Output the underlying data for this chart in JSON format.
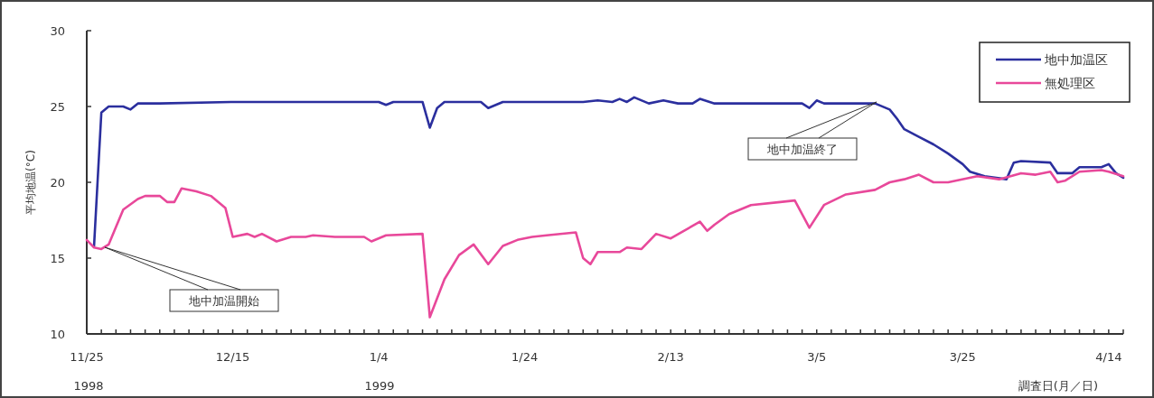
{
  "chart_data": {
    "type": "line",
    "xlabel": "調査日(月／日)",
    "ylabel": "平均地温(°C)",
    "xlim": [
      "1998-11-25",
      "1999-04-16"
    ],
    "ylim": [
      10,
      30
    ],
    "yticks": [
      10,
      15,
      20,
      25,
      30
    ],
    "xticks": [
      {
        "value": "1998-11-25",
        "label": "11/25"
      },
      {
        "value": "1998-11-27",
        "label": null
      },
      {
        "value": "1998-11-29",
        "label": null
      },
      {
        "value": "1998-12-01",
        "label": null
      },
      {
        "value": "1998-12-03",
        "label": null
      },
      {
        "value": "1998-12-05",
        "label": null
      },
      {
        "value": "1998-12-07",
        "label": null
      },
      {
        "value": "1998-12-09",
        "label": null
      },
      {
        "value": "1998-12-11",
        "label": null
      },
      {
        "value": "1998-12-13",
        "label": null
      },
      {
        "value": "1998-12-15",
        "label": "12/15"
      },
      {
        "value": "1998-12-17",
        "label": null
      },
      {
        "value": "1998-12-19",
        "label": null
      },
      {
        "value": "1998-12-21",
        "label": null
      },
      {
        "value": "1998-12-23",
        "label": null
      },
      {
        "value": "1998-12-25",
        "label": null
      },
      {
        "value": "1998-12-27",
        "label": null
      },
      {
        "value": "1998-12-29",
        "label": null
      },
      {
        "value": "1998-12-31",
        "label": null
      },
      {
        "value": "1999-01-02",
        "label": null
      },
      {
        "value": "1999-01-04",
        "label": "1/4"
      },
      {
        "value": "1999-01-06",
        "label": null
      },
      {
        "value": "1999-01-08",
        "label": null
      },
      {
        "value": "1999-01-10",
        "label": null
      },
      {
        "value": "1999-01-12",
        "label": null
      },
      {
        "value": "1999-01-14",
        "label": null
      },
      {
        "value": "1999-01-16",
        "label": null
      },
      {
        "value": "1999-01-18",
        "label": null
      },
      {
        "value": "1999-01-20",
        "label": null
      },
      {
        "value": "1999-01-22",
        "label": null
      },
      {
        "value": "1999-01-24",
        "label": "1/24"
      },
      {
        "value": "1999-01-26",
        "label": null
      },
      {
        "value": "1999-01-28",
        "label": null
      },
      {
        "value": "1999-01-30",
        "label": null
      },
      {
        "value": "1999-02-01",
        "label": null
      },
      {
        "value": "1999-02-03",
        "label": null
      },
      {
        "value": "1999-02-05",
        "label": null
      },
      {
        "value": "1999-02-07",
        "label": null
      },
      {
        "value": "1999-02-09",
        "label": null
      },
      {
        "value": "1999-02-11",
        "label": null
      },
      {
        "value": "1999-02-13",
        "label": "2/13"
      },
      {
        "value": "1999-02-15",
        "label": null
      },
      {
        "value": "1999-02-17",
        "label": null
      },
      {
        "value": "1999-02-19",
        "label": null
      },
      {
        "value": "1999-02-21",
        "label": null
      },
      {
        "value": "1999-02-23",
        "label": null
      },
      {
        "value": "1999-02-25",
        "label": null
      },
      {
        "value": "1999-02-27",
        "label": null
      },
      {
        "value": "1999-03-01",
        "label": null
      },
      {
        "value": "1999-03-03",
        "label": null
      },
      {
        "value": "1999-03-05",
        "label": "3/5"
      },
      {
        "value": "1999-03-07",
        "label": null
      },
      {
        "value": "1999-03-09",
        "label": null
      },
      {
        "value": "1999-03-11",
        "label": null
      },
      {
        "value": "1999-03-13",
        "label": null
      },
      {
        "value": "1999-03-15",
        "label": null
      },
      {
        "value": "1999-03-17",
        "label": null
      },
      {
        "value": "1999-03-19",
        "label": null
      },
      {
        "value": "1999-03-21",
        "label": null
      },
      {
        "value": "1999-03-23",
        "label": null
      },
      {
        "value": "1999-03-25",
        "label": "3/25"
      },
      {
        "value": "1999-03-27",
        "label": null
      },
      {
        "value": "1999-03-29",
        "label": null
      },
      {
        "value": "1999-03-31",
        "label": null
      },
      {
        "value": "1999-04-02",
        "label": null
      },
      {
        "value": "1999-04-04",
        "label": null
      },
      {
        "value": "1999-04-06",
        "label": null
      },
      {
        "value": "1999-04-08",
        "label": null
      },
      {
        "value": "1999-04-10",
        "label": null
      },
      {
        "value": "1999-04-12",
        "label": null
      },
      {
        "value": "1999-04-14",
        "label": "4/14"
      },
      {
        "value": "1999-04-16",
        "label": null
      }
    ],
    "legend": "top right",
    "series": [
      {
        "name": "地中加温区",
        "color": "#2b2f9e",
        "x": [
          "1998-11-26",
          "1998-11-27",
          "1998-11-28",
          "1998-11-30",
          "1998-12-01",
          "1998-12-02",
          "1998-12-05",
          "1998-12-15",
          "1999-01-04",
          "1999-01-05",
          "1999-01-06",
          "1999-01-10",
          "1999-01-11",
          "1999-01-12",
          "1999-01-13",
          "1999-01-18",
          "1999-01-19",
          "1999-01-21",
          "1999-02-01",
          "1999-02-03",
          "1999-02-05",
          "1999-02-06",
          "1999-02-07",
          "1999-02-08",
          "1999-02-10",
          "1999-02-12",
          "1999-02-14",
          "1999-02-16",
          "1999-02-17",
          "1999-02-19",
          "1999-02-23",
          "1999-03-03",
          "1999-03-04",
          "1999-03-05",
          "1999-03-06",
          "1999-03-13",
          "1999-03-15",
          "1999-03-16",
          "1999-03-17",
          "1999-03-19",
          "1999-03-21",
          "1999-03-23",
          "1999-03-25",
          "1999-03-26",
          "1999-03-28",
          "1999-03-31",
          "1999-04-01",
          "1999-04-02",
          "1999-04-06",
          "1999-04-07",
          "1999-04-09",
          "1999-04-10",
          "1999-04-13",
          "1999-04-14",
          "1999-04-15",
          "1999-04-16"
        ],
        "values": [
          15.8,
          24.6,
          25.0,
          25.0,
          24.8,
          25.2,
          25.2,
          25.3,
          25.3,
          25.1,
          25.3,
          25.3,
          23.6,
          24.9,
          25.3,
          25.3,
          24.9,
          25.3,
          25.3,
          25.4,
          25.3,
          25.5,
          25.3,
          25.6,
          25.2,
          25.4,
          25.2,
          25.2,
          25.5,
          25.2,
          25.2,
          25.2,
          24.9,
          25.4,
          25.2,
          25.2,
          24.8,
          24.2,
          23.5,
          23.0,
          22.5,
          21.9,
          21.2,
          20.7,
          20.4,
          20.2,
          21.3,
          21.4,
          21.3,
          20.6,
          20.6,
          21.0,
          21.0,
          21.2,
          20.6,
          20.3
        ]
      },
      {
        "name": "無処理区",
        "color": "#e8489a",
        "x": [
          "1998-11-25",
          "1998-11-26",
          "1998-11-27",
          "1998-11-28",
          "1998-11-30",
          "1998-12-02",
          "1998-12-03",
          "1998-12-05",
          "1998-12-06",
          "1998-12-07",
          "1998-12-08",
          "1998-12-10",
          "1998-12-12",
          "1998-12-13",
          "1998-12-14",
          "1998-12-15",
          "1998-12-17",
          "1998-12-18",
          "1998-12-19",
          "1998-12-21",
          "1998-12-23",
          "1998-12-25",
          "1998-12-26",
          "1998-12-29",
          "1999-01-02",
          "1999-01-03",
          "1999-01-05",
          "1999-01-10",
          "1999-01-11",
          "1999-01-13",
          "1999-01-15",
          "1999-01-17",
          "1999-01-19",
          "1999-01-21",
          "1999-01-23",
          "1999-01-25",
          "1999-01-27",
          "1999-01-31",
          "1999-02-01",
          "1999-02-02",
          "1999-02-03",
          "1999-02-06",
          "1999-02-07",
          "1999-02-09",
          "1999-02-11",
          "1999-02-13",
          "1999-02-17",
          "1999-02-18",
          "1999-02-19",
          "1999-02-21",
          "1999-02-24",
          "1999-02-28",
          "1999-03-02",
          "1999-03-04",
          "1999-03-06",
          "1999-03-09",
          "1999-03-13",
          "1999-03-15",
          "1999-03-17",
          "1999-03-19",
          "1999-03-21",
          "1999-03-23",
          "1999-03-27",
          "1999-03-30",
          "1999-04-02",
          "1999-04-04",
          "1999-04-06",
          "1999-04-07",
          "1999-04-08",
          "1999-04-10",
          "1999-04-13",
          "1999-04-14",
          "1999-04-16"
        ],
        "values": [
          16.2,
          15.7,
          15.6,
          15.9,
          18.2,
          18.9,
          19.1,
          19.1,
          18.7,
          18.7,
          19.6,
          19.4,
          19.1,
          18.7,
          18.3,
          16.4,
          16.6,
          16.4,
          16.6,
          16.1,
          16.4,
          16.4,
          16.5,
          16.4,
          16.4,
          16.1,
          16.5,
          16.6,
          11.1,
          13.6,
          15.2,
          15.9,
          14.6,
          15.8,
          16.2,
          16.4,
          16.5,
          16.7,
          15.0,
          14.6,
          15.4,
          15.4,
          15.7,
          15.6,
          16.6,
          16.3,
          17.4,
          16.8,
          17.2,
          17.9,
          18.5,
          18.7,
          18.8,
          17.0,
          18.5,
          19.2,
          19.5,
          20.0,
          20.2,
          20.5,
          20.0,
          20.0,
          20.4,
          20.2,
          20.6,
          20.5,
          20.7,
          20.0,
          20.1,
          20.7,
          20.8,
          20.7,
          20.4
        ]
      }
    ],
    "annotations": [
      "地中加温開始",
      "地中加温終了",
      "1998",
      "1999"
    ]
  }
}
